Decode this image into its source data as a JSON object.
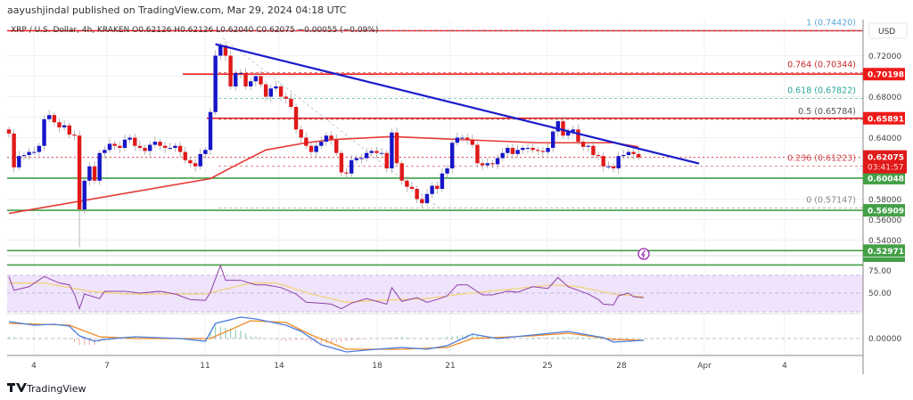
{
  "header": {
    "published": "aayushjindal published on TradingView.com, Mar 29, 2024 04:18 UTC",
    "legend": "XRP / U.S. Dollar, 4h, KRAKEN  O0.62126  H0.62126  L0.62040  C0.62075  −0.00055 (−0.09%)"
  },
  "footer": {
    "brand": "TradingView"
  },
  "colors": {
    "up": "#1616c8",
    "down": "#e01919",
    "support": "#43a047",
    "resistance": "#f01a1a",
    "trendline": "#1a1acc",
    "ma": "#e53935",
    "rsi": "#8e3fa8",
    "rsi_ma": "#f2d27a",
    "rsi_band": "#efe4fb",
    "macd": "#4a7de0",
    "signal": "#f08a24"
  },
  "chart_data": {
    "type": "candlestick",
    "symbol": "XRP / U.S. Dollar",
    "timeframe": "4h",
    "exchange": "KRAKEN",
    "price_axis": {
      "unit": "USD",
      "ticks": [
        "0.72000",
        "0.68000",
        "0.64000",
        "0.58000",
        "0.56000",
        "0.54000"
      ],
      "ylim": [
        0.51,
        0.745
      ]
    },
    "time_axis": {
      "ticks": [
        "4",
        "7",
        "11",
        "14",
        "18",
        "21",
        "25",
        "28",
        "Apr",
        "4"
      ]
    },
    "close": [
      0.644,
      0.611,
      0.622,
      0.623,
      0.626,
      0.626,
      0.632,
      0.658,
      0.662,
      0.655,
      0.65,
      0.652,
      0.643,
      0.642,
      0.57,
      0.598,
      0.612,
      0.598,
      0.625,
      0.628,
      0.634,
      0.632,
      0.63,
      0.638,
      0.64,
      0.632,
      0.63,
      0.627,
      0.633,
      0.636,
      0.632,
      0.63,
      0.63,
      0.632,
      0.626,
      0.618,
      0.615,
      0.612,
      0.624,
      0.628,
      0.665,
      0.72,
      0.73,
      0.72,
      0.69,
      0.703,
      0.703,
      0.69,
      0.695,
      0.7,
      0.692,
      0.68,
      0.688,
      0.69,
      0.68,
      0.678,
      0.67,
      0.648,
      0.64,
      0.632,
      0.626,
      0.632,
      0.636,
      0.642,
      0.638,
      0.625,
      0.606,
      0.605,
      0.618,
      0.62,
      0.62,
      0.625,
      0.627,
      0.625,
      0.625,
      0.61,
      0.645,
      0.615,
      0.598,
      0.592,
      0.59,
      0.58,
      0.576,
      0.585,
      0.593,
      0.59,
      0.605,
      0.61,
      0.635,
      0.64,
      0.64,
      0.638,
      0.633,
      0.615,
      0.613,
      0.615,
      0.614,
      0.62,
      0.625,
      0.63,
      0.624,
      0.628,
      0.63,
      0.63,
      0.628,
      0.627,
      0.626,
      0.63,
      0.646,
      0.656,
      0.642,
      0.646,
      0.648,
      0.636,
      0.631,
      0.632,
      0.623,
      0.622,
      0.612,
      0.612,
      0.61,
      0.622,
      0.623,
      0.626,
      0.624,
      0.62075
    ],
    "moving_average": {
      "bars": [
        0,
        40,
        45,
        51,
        59,
        64,
        76,
        105,
        120,
        125
      ],
      "values": [
        0.566,
        0.6,
        0.613,
        0.628,
        0.635,
        0.638,
        0.641,
        0.635,
        0.635,
        0.631
      ]
    },
    "horizontal_levels": [
      {
        "price": "0.70198",
        "kind": "resistance"
      },
      {
        "price": "0.65891",
        "kind": "resistance"
      },
      {
        "price": "0.60048",
        "kind": "support"
      },
      {
        "price": "0.56909",
        "kind": "support"
      },
      {
        "price": "0.52971",
        "kind": "support"
      },
      {
        "price": "0.51575",
        "kind": "support"
      }
    ],
    "current_price": {
      "price": "0.62075",
      "countdown": "03:41:57"
    },
    "fibonacci": [
      {
        "label": "1 (0.74420)",
        "price": 0.7442,
        "color": "#5aa7d6"
      },
      {
        "label": "0.764 (0.70344)",
        "price": 0.70344,
        "color": "#c62828"
      },
      {
        "label": "0.618 (0.67822)",
        "price": 0.67822,
        "color": "#26a69a"
      },
      {
        "label": "0.5 (0.65784)",
        "price": 0.65784,
        "color": "#555555"
      },
      {
        "label": "0.236 (0.61223)",
        "price": 0.61223,
        "color": "#d04a55"
      },
      {
        "label": "0 (0.57147)",
        "price": 0.57147,
        "color": "#888888"
      }
    ],
    "trendline": {
      "from": {
        "bar": 41,
        "price": 0.7312
      },
      "to": {
        "bar": 137,
        "price": 0.6147
      }
    },
    "rsi": {
      "ticks": [
        "75.00",
        "50.00"
      ],
      "bars": [
        0,
        1,
        4,
        7,
        10,
        12,
        13,
        14,
        15,
        18,
        19,
        23,
        26,
        30,
        33,
        36,
        39,
        40,
        42,
        43,
        46,
        49,
        51,
        54,
        57,
        59,
        62,
        64,
        66,
        68,
        71,
        73,
        75,
        76,
        78,
        81,
        83,
        85,
        87,
        89,
        91,
        94,
        96,
        99,
        101,
        104,
        107,
        109,
        111,
        113,
        115,
        117,
        118,
        120,
        121,
        123,
        124,
        126
      ],
      "values": [
        68,
        53,
        57,
        68,
        61,
        59,
        49,
        33,
        49,
        44,
        52,
        52,
        50,
        52,
        49,
        43,
        42,
        51,
        80,
        64,
        64,
        59,
        59,
        56,
        49,
        40,
        39,
        38,
        33,
        39,
        44,
        41,
        38,
        56,
        41,
        45,
        40,
        43,
        47,
        59,
        59,
        48,
        48,
        52,
        51,
        57,
        55,
        67,
        57,
        53,
        49,
        43,
        38,
        37,
        47,
        50,
        46,
        45
      ],
      "ma_bars": [
        0,
        7,
        16,
        23,
        34,
        39,
        48,
        53,
        60,
        67,
        73,
        83,
        90,
        99,
        108,
        113,
        120,
        126
      ],
      "ma_values": [
        61,
        61,
        52,
        49,
        49,
        49,
        61,
        61,
        49,
        40,
        42,
        44,
        49,
        54,
        59,
        57,
        49,
        46
      ]
    },
    "macd": {
      "ticks": [
        "0.00000"
      ],
      "bars": [
        0,
        5,
        9,
        12,
        14,
        17,
        19,
        25,
        34,
        39,
        41,
        46,
        49,
        55,
        58,
        62,
        67,
        73,
        78,
        83,
        87,
        92,
        97,
        104,
        111,
        118,
        120,
        126
      ],
      "macd": [
        0.0095,
        0.0075,
        0.008,
        0.007,
        0.0015,
        -0.0015,
        -0.0005,
        0.001,
        0,
        -0.0015,
        0.0085,
        0.012,
        0.011,
        0.0075,
        0.004,
        -0.0035,
        -0.0075,
        -0.006,
        -0.005,
        -0.006,
        -0.004,
        0.0025,
        0,
        0.002,
        0.004,
        0.0005,
        -0.002,
        -0.001
      ],
      "signal_bars": [
        0,
        12,
        18,
        25,
        40,
        48,
        55,
        60,
        67,
        78,
        87,
        92,
        104,
        111,
        120,
        126
      ],
      "signal": [
        0.0085,
        0.0075,
        0.001,
        0,
        0,
        0.01,
        0.009,
        0.002,
        -0.006,
        -0.006,
        -0.005,
        0,
        0.0015,
        0.003,
        -0.0005,
        -0.001
      ]
    }
  }
}
